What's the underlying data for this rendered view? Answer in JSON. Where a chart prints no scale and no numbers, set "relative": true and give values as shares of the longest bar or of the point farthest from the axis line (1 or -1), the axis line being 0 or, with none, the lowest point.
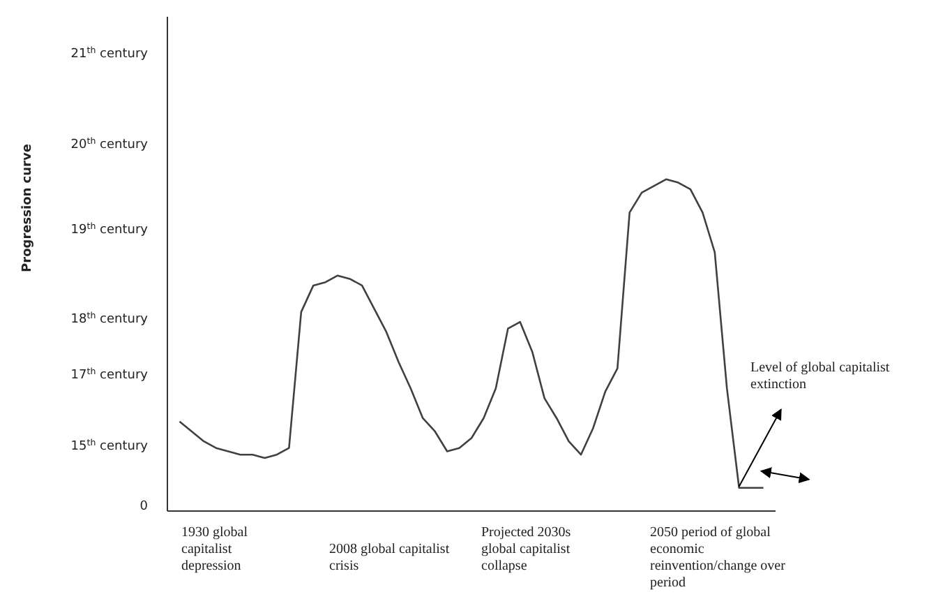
{
  "chart_data": {
    "type": "line",
    "relative": true,
    "categories": [
      null,
      null,
      null,
      null,
      null,
      null,
      null,
      null,
      null,
      null,
      null,
      null,
      null,
      null,
      null,
      null,
      null,
      null,
      null,
      null,
      null,
      null,
      null,
      null,
      null,
      null,
      null,
      null,
      null,
      null,
      null,
      null,
      null,
      null,
      null,
      null,
      null,
      null,
      null,
      null,
      null,
      null,
      null,
      null,
      null,
      null,
      null,
      null,
      null
    ],
    "series": [
      {
        "color": "#404040",
        "values": [
          0.27,
          0.24,
          0.21,
          0.19,
          0.18,
          0.17,
          0.17,
          0.16,
          0.17,
          0.19,
          0.6,
          0.68,
          0.69,
          0.71,
          0.7,
          0.68,
          0.61,
          0.54,
          0.45,
          0.37,
          0.28,
          0.24,
          0.18,
          0.19,
          0.22,
          0.28,
          0.37,
          0.55,
          0.57,
          0.48,
          0.34,
          0.28,
          0.21,
          0.17,
          0.25,
          0.36,
          0.43,
          0.9,
          0.96,
          0.98,
          1,
          0.99,
          0.97,
          0.9,
          0.78,
          0.37,
          0.07,
          0.07,
          0.07
        ]
      }
    ],
    "annotations": [
      "21$^{th}$ century",
      "20$^{th}$ century",
      "19$^{th}$ century",
      "18$^{th}$ century",
      "17$^{th}$ century",
      "15$^{th}$ century",
      "0",
      "1930 global capitalist depression",
      "2008 global capitalist crisis",
      "Projected 2030s global capitalist collapse",
      "2050 period of global economic reinvention/change over period",
      "Level of global capitalist extinction",
      "Progression curve"
    ]
  }
}
